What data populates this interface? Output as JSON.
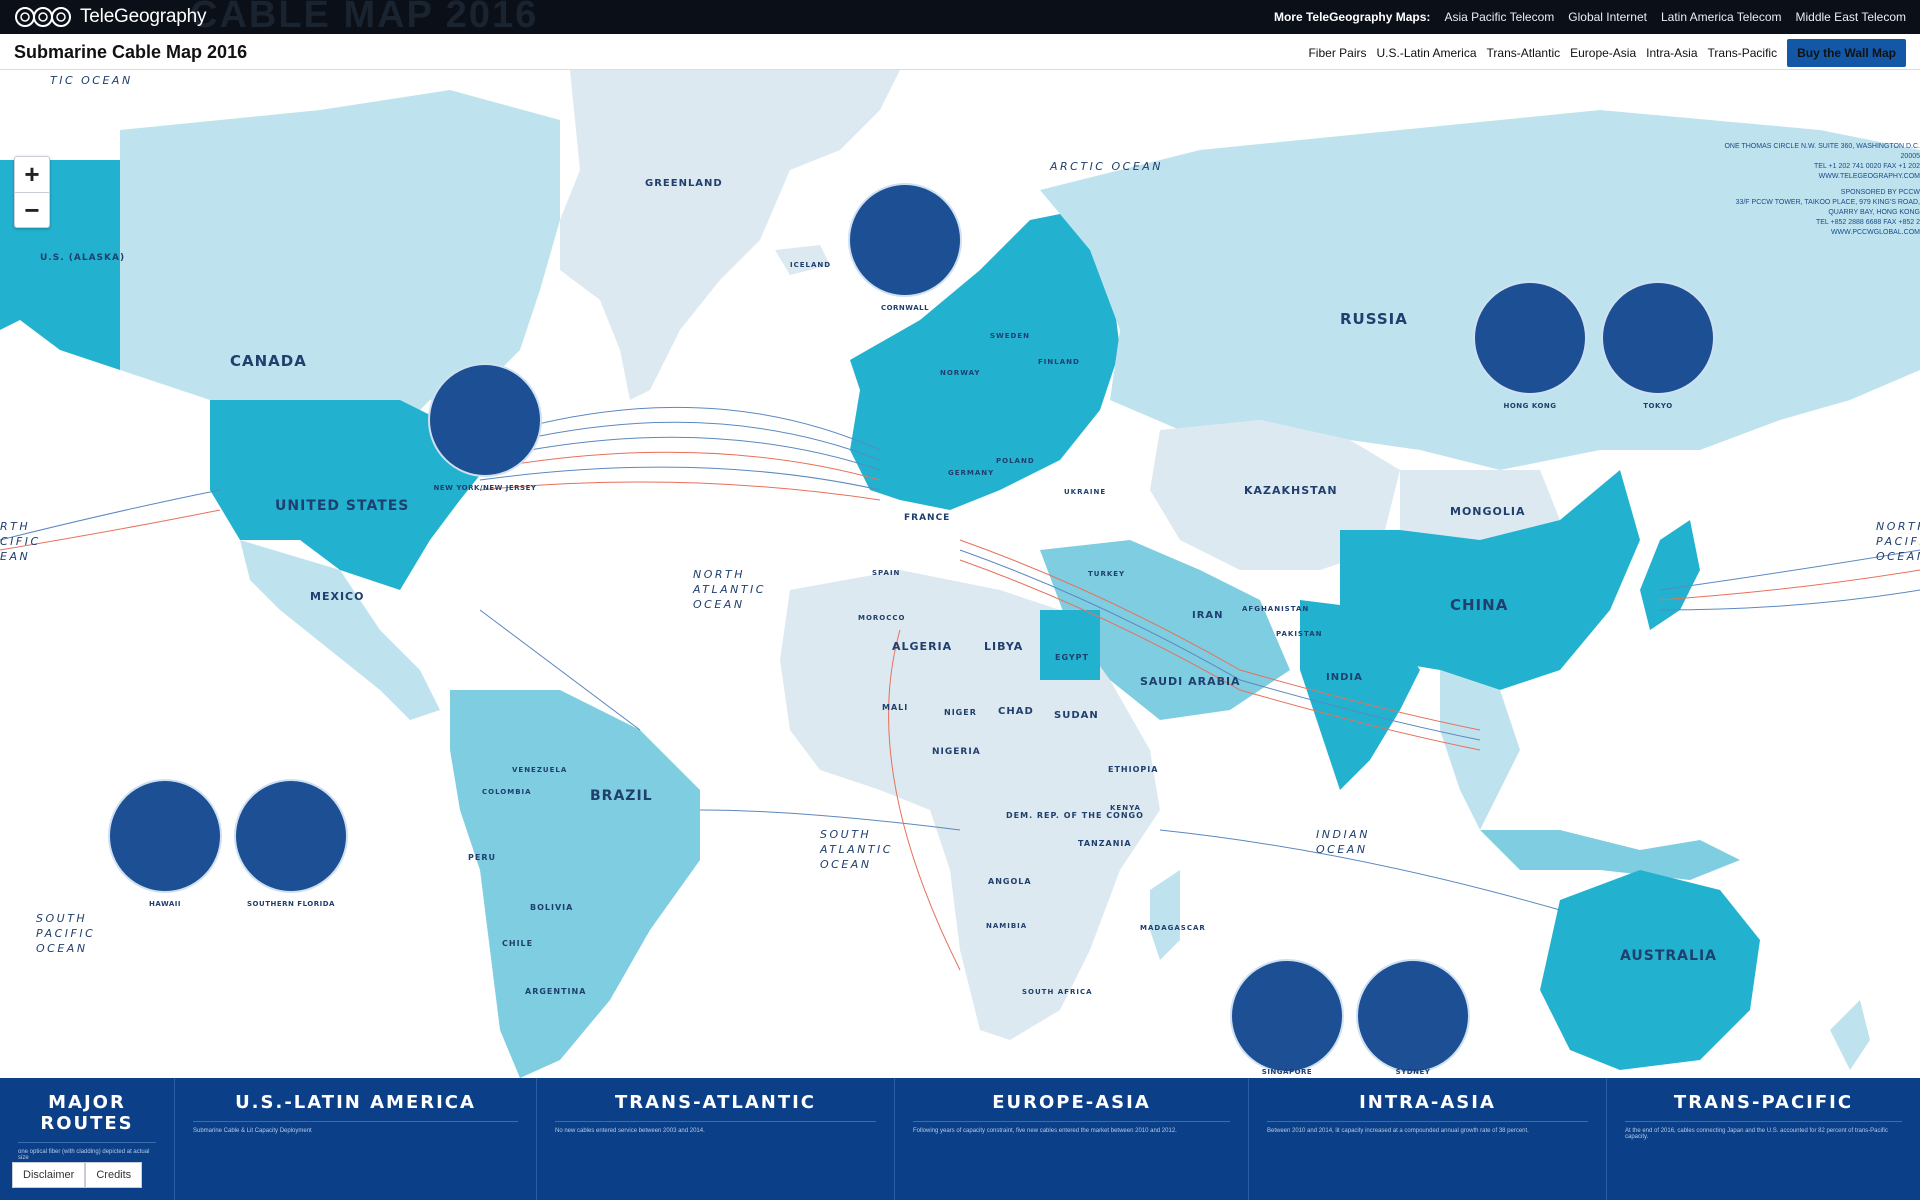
{
  "brand": {
    "name": "TeleGeography",
    "background_text": "CABLE MAP 2016"
  },
  "more_maps": {
    "label": "More TeleGeography Maps:",
    "links": [
      "Asia Pacific Telecom",
      "Global Internet",
      "Latin America Telecom",
      "Middle East Telecom"
    ]
  },
  "title": "Submarine Cable Map 2016",
  "nav": {
    "links": [
      "Fiber Pairs",
      "U.S.-Latin America",
      "Trans-Atlantic",
      "Europe-Asia",
      "Intra-Asia",
      "Trans-Pacific"
    ],
    "buy_label": "Buy the Wall Map"
  },
  "zoom": {
    "in": "+",
    "out": "−"
  },
  "sponsor": {
    "address_line": "ONE THOMAS CIRCLE N.W. SUITE 360, WASHINGTON D.C. 20005",
    "tel_line": "TEL +1 202 741 0020  FAX +1 202",
    "web": "WWW.TELEGEOGRAPHY.COM",
    "sponsored_by": "SPONSORED BY PCCW",
    "pccw_address": "33/F PCCW TOWER, TAIKOO PLACE, 979 KING'S ROAD, QUARRY BAY, HONG KONG",
    "pccw_tel": "TEL +852 2888 6688  FAX +852 2",
    "pccw_web": "WWW.PCCWGLOBAL.COM"
  },
  "countries": {
    "us_alaska": "U.S. (ALASKA)",
    "canada": "CANADA",
    "united_states": "UNITED STATES",
    "mexico": "MEXICO",
    "greenland": "GREENLAND",
    "iceland": "ICELAND",
    "russia": "RUSSIA",
    "china": "CHINA",
    "india": "INDIA",
    "kazakhstan": "KAZAKHSTAN",
    "mongolia": "MONGOLIA",
    "brazil": "BRAZIL",
    "australia": "AUSTRALIA",
    "algeria": "ALGERIA",
    "libya": "LIBYA",
    "egypt": "EGYPT",
    "sudan": "SUDAN",
    "chad": "CHAD",
    "niger": "NIGER",
    "mali": "MALI",
    "nigeria": "NIGERIA",
    "ethiopia": "ETHIOPIA",
    "saudi_arabia": "SAUDI ARABIA",
    "iran": "IRAN",
    "france": "FRANCE",
    "germany": "GERMANY",
    "sweden": "SWEDEN",
    "finland": "FINLAND",
    "norway": "NORWAY",
    "ukraine": "UKRAINE",
    "turkey": "TURKEY",
    "peru": "PERU",
    "bolivia": "BOLIVIA",
    "argentina": "ARGENTINA",
    "chile": "CHILE",
    "colombia": "COLOMBIA",
    "venezuela": "VENEZUELA",
    "angola": "ANGOLA",
    "namibia": "NAMIBIA",
    "south_africa": "SOUTH AFRICA",
    "dr_congo": "DEM. REP. OF THE CONGO",
    "tanzania": "TANZANIA",
    "kenya": "KENYA",
    "madagascar": "MADAGASCAR",
    "pakistan": "PAKISTAN",
    "afghanistan": "AFGHANISTAN",
    "spain": "SPAIN",
    "poland": "POLAND",
    "morocco": "MOROCCO"
  },
  "oceans": {
    "arctic": "ARCTIC OCEAN",
    "arctic_left": "TIC OCEAN",
    "north_atlantic": [
      "NORTH",
      "ATLANTIC",
      "OCEAN"
    ],
    "south_atlantic": [
      "SOUTH",
      "ATLANTIC",
      "OCEAN"
    ],
    "indian": [
      "INDIAN",
      "OCEAN"
    ],
    "south_pacific": [
      "SOUTH",
      "PACIFIC",
      "OCEAN"
    ],
    "north_pacific_left": [
      "RTH",
      "CIFIC",
      "EAN"
    ],
    "north_pacific_right": [
      "NORTH",
      "PACIFIC",
      "OCEAN"
    ]
  },
  "insets": [
    "CORNWALL",
    "NEW YORK/NEW JERSEY",
    "HONG KONG",
    "TOKYO",
    "HAWAII",
    "SOUTHERN FLORIDA",
    "SINGAPORE",
    "SYDNEY"
  ],
  "bottom_panels": [
    {
      "title": "MAJOR ROUTES",
      "sub": "one optical fiber (with cladding) depicted at actual size"
    },
    {
      "title": "U.S.-LATIN AMERICA",
      "sub": "Submarine Cable & Lit Capacity Deployment"
    },
    {
      "title": "TRANS-ATLANTIC",
      "sub": "No new cables entered service between 2003 and 2014."
    },
    {
      "title": "EUROPE-ASIA",
      "sub": "Following years of capacity constraint, five new cables entered the market between 2010 and 2012."
    },
    {
      "title": "INTRA-ASIA",
      "sub": "Between 2010 and 2014, lit capacity increased at a compounded annual growth rate of 38 percent."
    },
    {
      "title": "TRANS-PACIFIC",
      "sub": "At the end of 2016, cables connecting Japan and the U.S. accounted for 82 percent of trans-Pacific capacity."
    }
  ],
  "footer": {
    "disclaimer": "Disclaimer",
    "credits": "Credits"
  },
  "colors": {
    "land_dark": "#22b2d0",
    "land_mid": "#7fcde0",
    "land_light": "#bfe3ee",
    "land_pale": "#dde9f0",
    "ocean": "#ffffff",
    "inset": "#1c4f93",
    "cable_red": "#e8705c",
    "cable_blue": "#5b88c0"
  }
}
